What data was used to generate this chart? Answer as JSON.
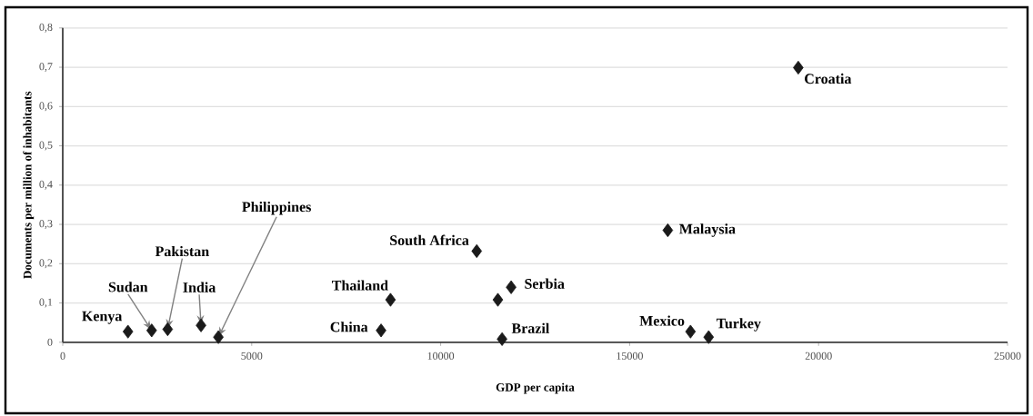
{
  "chart_data": {
    "type": "scatter",
    "xlabel": "GDP per capita",
    "ylabel": "Documents per million of inhabitants",
    "x": [
      1726,
      2353,
      2776,
      3659,
      4118,
      8423,
      8673,
      10954,
      11514,
      11625,
      11865,
      16010,
      16611,
      17091,
      19463
    ],
    "values": [
      0.027,
      0.03,
      0.033,
      0.043,
      0.013,
      0.03,
      0.108,
      0.232,
      0.108,
      0.008,
      0.14,
      0.285,
      0.027,
      0.013,
      0.699
    ],
    "color": "#1a1a1a",
    "marker": "diamond",
    "xlim": [
      0,
      25000
    ],
    "xticks": [
      0,
      5000,
      10000,
      15000,
      20000,
      25000
    ],
    "ylim": [
      0,
      0.8
    ],
    "yticks": [
      {
        "value": 0,
        "label": "0"
      },
      {
        "value": 0.1,
        "label": "0,1"
      },
      {
        "value": 0.2,
        "label": "0,2"
      },
      {
        "value": 0.3,
        "label": "0,3"
      },
      {
        "value": 0.4,
        "label": "0,4"
      },
      {
        "value": 0.5,
        "label": "0,5"
      },
      {
        "value": 0.6,
        "label": "0,6"
      },
      {
        "value": 0.7,
        "label": "0,7"
      },
      {
        "value": 0.8,
        "label": "0,8"
      }
    ],
    "grid": "y",
    "annotations": [
      {
        "text": "Kenya",
        "x": 1726,
        "y": 0.027
      },
      {
        "text": "Sudan",
        "x": 2353,
        "y": 0.03
      },
      {
        "text": "Pakistan",
        "x": 2776,
        "y": 0.033
      },
      {
        "text": "India",
        "x": 3659,
        "y": 0.043
      },
      {
        "text": "Philippines",
        "x": 4118,
        "y": 0.013
      },
      {
        "text": "China",
        "x": 8423,
        "y": 0.03
      },
      {
        "text": "Thailand",
        "x": 8673,
        "y": 0.108
      },
      {
        "text": "South Africa",
        "x": 10954,
        "y": 0.232
      },
      {
        "text": "Serbia",
        "x": 11865,
        "y": 0.14
      },
      {
        "text": "Brazil",
        "x": 11625,
        "y": 0.008
      },
      {
        "text": "Malaysia",
        "x": 16010,
        "y": 0.285
      },
      {
        "text": "Mexico",
        "x": 16611,
        "y": 0.027
      },
      {
        "text": "Turkey",
        "x": 17091,
        "y": 0.013
      },
      {
        "text": "Croatia",
        "x": 19463,
        "y": 0.699
      }
    ]
  }
}
